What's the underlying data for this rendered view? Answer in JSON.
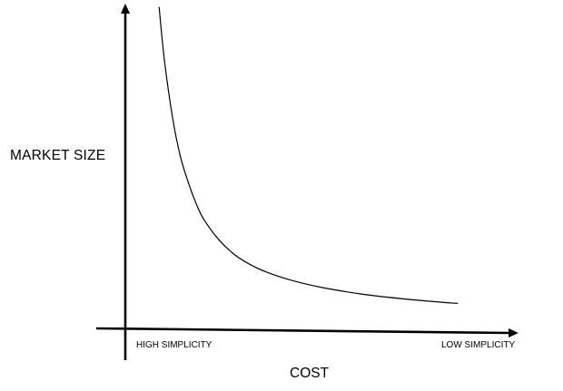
{
  "chart_data": {
    "type": "line",
    "title": "",
    "ylabel": "MARKET SIZE",
    "xlabel": "COST",
    "tick_labels": {
      "left": "HIGH SIMPLICITY",
      "right": "LOW SIMPLICITY"
    },
    "axis_numbers_shown": false,
    "grid": false,
    "legend": "none",
    "xlim": [
      0,
      100
    ],
    "ylim": [
      0,
      100
    ],
    "series": [
      {
        "x": [
          8.6,
          10,
          12,
          14,
          16,
          18,
          20,
          24,
          28,
          32,
          36,
          42,
          50,
          60,
          70,
          80,
          84.6
        ],
        "values": [
          99,
          82,
          65,
          53,
          45,
          38.5,
          33.5,
          27,
          22.5,
          19.5,
          17.3,
          14.9,
          12.6,
          10.6,
          9.2,
          8.1,
          7.7
        ]
      }
    ],
    "color": "#000000"
  }
}
